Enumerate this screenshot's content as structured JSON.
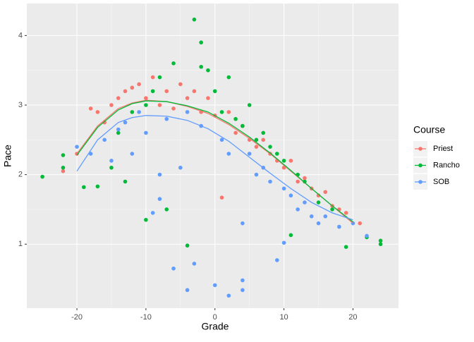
{
  "chart_data": {
    "type": "scatter",
    "x_label": "Grade",
    "y_label": "Pace",
    "legend_title": "Course",
    "legend_position": "right",
    "grid": true,
    "xlim": [
      -27.26,
      26.6
    ],
    "ylim": [
      0.08,
      4.46
    ],
    "xticks": [
      -20,
      -10,
      0,
      10,
      20
    ],
    "yticks": [
      1,
      2,
      3,
      4
    ],
    "series": [
      {
        "name": "Priest",
        "color": "#F8766D",
        "x": [
          -22,
          -20,
          -18,
          -17,
          -16,
          -15,
          -14,
          -13,
          -12,
          -11,
          -10,
          -9,
          -8,
          -7,
          -6,
          -5,
          -4,
          -3,
          -2,
          -1,
          0,
          1,
          2,
          3,
          4,
          5,
          6,
          7,
          8,
          9,
          10,
          11,
          12,
          13,
          14,
          15,
          16,
          17,
          18,
          19,
          21
        ],
        "values": [
          2.05,
          2.3,
          2.95,
          2.9,
          2.75,
          3.0,
          3.1,
          3.2,
          3.25,
          3.3,
          3.1,
          3.4,
          3.0,
          3.2,
          2.95,
          3.3,
          3.1,
          3.2,
          2.9,
          3.1,
          2.85,
          1.67,
          2.9,
          2.6,
          2.7,
          2.5,
          2.4,
          2.5,
          2.3,
          2.2,
          2.1,
          2.2,
          1.9,
          1.95,
          1.8,
          1.7,
          1.75,
          1.55,
          1.5,
          1.45,
          1.3
        ],
        "smooth": {
          "x": [
            -20,
            -17,
            -14,
            -12,
            -10,
            -7,
            -4,
            -1,
            2,
            5,
            8,
            11,
            14,
            17,
            20
          ],
          "values": [
            2.3,
            2.7,
            2.95,
            3.03,
            3.07,
            3.05,
            2.98,
            2.88,
            2.72,
            2.52,
            2.3,
            2.05,
            1.8,
            1.55,
            1.3
          ]
        }
      },
      {
        "name": "Rancho",
        "color": "#00BA38",
        "x": [
          -25,
          -22,
          -22,
          -19,
          -17,
          -15,
          -14,
          -13,
          -12,
          -10,
          -10,
          -9,
          -7,
          -8,
          -6,
          -4,
          -3,
          -2,
          -2,
          -1,
          0,
          1,
          2,
          3,
          4,
          5,
          6,
          7,
          8,
          9,
          10,
          11,
          12,
          13,
          15,
          17,
          19,
          22,
          24,
          24
        ],
        "values": [
          1.97,
          2.28,
          2.1,
          1.82,
          1.83,
          2.1,
          2.6,
          1.9,
          2.9,
          1.35,
          3.0,
          3.2,
          1.5,
          3.4,
          3.6,
          0.98,
          4.23,
          3.9,
          3.55,
          3.5,
          3.2,
          2.9,
          3.4,
          2.8,
          2.7,
          3.0,
          2.5,
          2.6,
          2.4,
          2.3,
          2.2,
          1.13,
          2.0,
          1.9,
          1.6,
          1.5,
          0.96,
          1.1,
          1.05,
          1.0
        ],
        "smooth": {
          "x": [
            -20,
            -17,
            -14,
            -12,
            -10,
            -7,
            -4,
            -1,
            2,
            5,
            8,
            11,
            14,
            17,
            20
          ],
          "values": [
            2.28,
            2.68,
            2.93,
            3.02,
            3.06,
            3.05,
            2.99,
            2.9,
            2.74,
            2.54,
            2.31,
            2.06,
            1.8,
            1.55,
            1.32
          ]
        }
      },
      {
        "name": "SOB",
        "color": "#619CFF",
        "x": [
          -20,
          -18,
          -16,
          -15,
          -14,
          -13,
          -12,
          -11,
          -10,
          -9,
          -8,
          -8,
          -7,
          -6,
          -5,
          -4,
          -4,
          -3,
          -2,
          0,
          1,
          2,
          2,
          4,
          4,
          4,
          5,
          6,
          7,
          8,
          9,
          10,
          10,
          11,
          12,
          13,
          14,
          15,
          16,
          18,
          20,
          22
        ],
        "values": [
          2.4,
          2.3,
          2.5,
          2.2,
          2.65,
          2.75,
          2.3,
          2.9,
          2.6,
          1.45,
          2.0,
          1.65,
          2.8,
          0.65,
          2.1,
          0.34,
          2.9,
          0.72,
          2.7,
          0.41,
          2.5,
          0.26,
          2.3,
          0.48,
          0.34,
          1.3,
          2.3,
          2.0,
          2.1,
          1.9,
          0.77,
          1.02,
          1.8,
          1.7,
          1.5,
          1.6,
          1.4,
          1.3,
          1.4,
          1.25,
          1.3,
          1.12
        ],
        "smooth": {
          "x": [
            -20,
            -17,
            -14,
            -12,
            -10,
            -7,
            -4,
            -1,
            2,
            5,
            8,
            11,
            14,
            17,
            20
          ],
          "values": [
            2.05,
            2.5,
            2.75,
            2.82,
            2.85,
            2.84,
            2.78,
            2.66,
            2.48,
            2.25,
            2.02,
            1.8,
            1.6,
            1.45,
            1.35
          ]
        }
      }
    ]
  }
}
